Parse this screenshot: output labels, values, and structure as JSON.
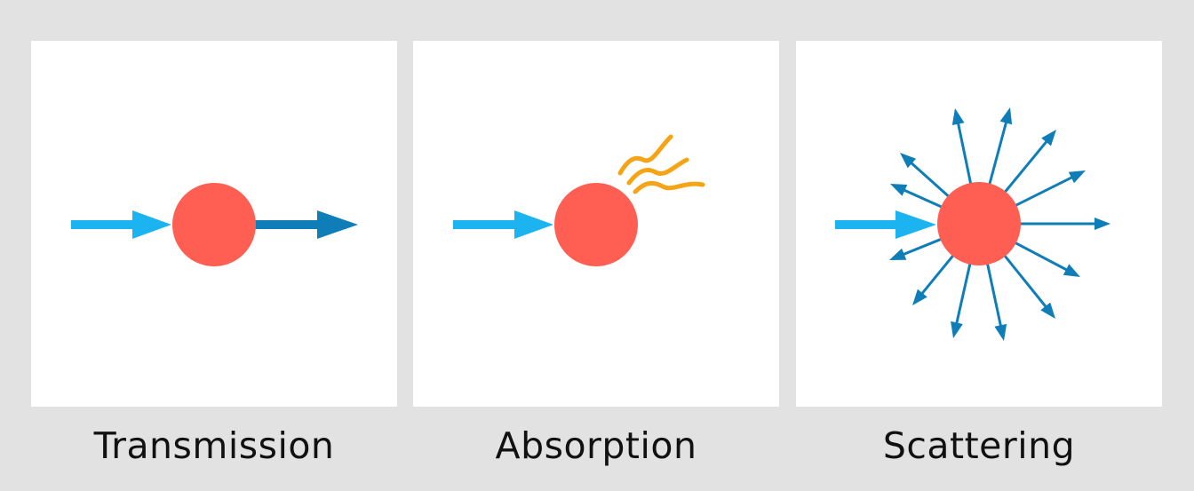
{
  "panels": [
    {
      "id": "transmission",
      "label": "Transmission"
    },
    {
      "id": "absorption",
      "label": "Absorption"
    },
    {
      "id": "scattering",
      "label": "Scattering"
    }
  ],
  "colors": {
    "background": "#e2e2e2",
    "panel": "#ffffff",
    "particle": "#ff5f52",
    "incident_ray": "#1cb4f0",
    "outgoing_ray": "#0f7db8",
    "heat_wave": "#f5a416",
    "caption_text": "#111111"
  },
  "icons": {
    "particle": "particle-circle-icon",
    "incident": "incident-arrow-icon",
    "transmitted": "transmitted-arrow-icon",
    "heat": "heat-wave-icon",
    "scattered": "scattered-arrow-icon"
  }
}
